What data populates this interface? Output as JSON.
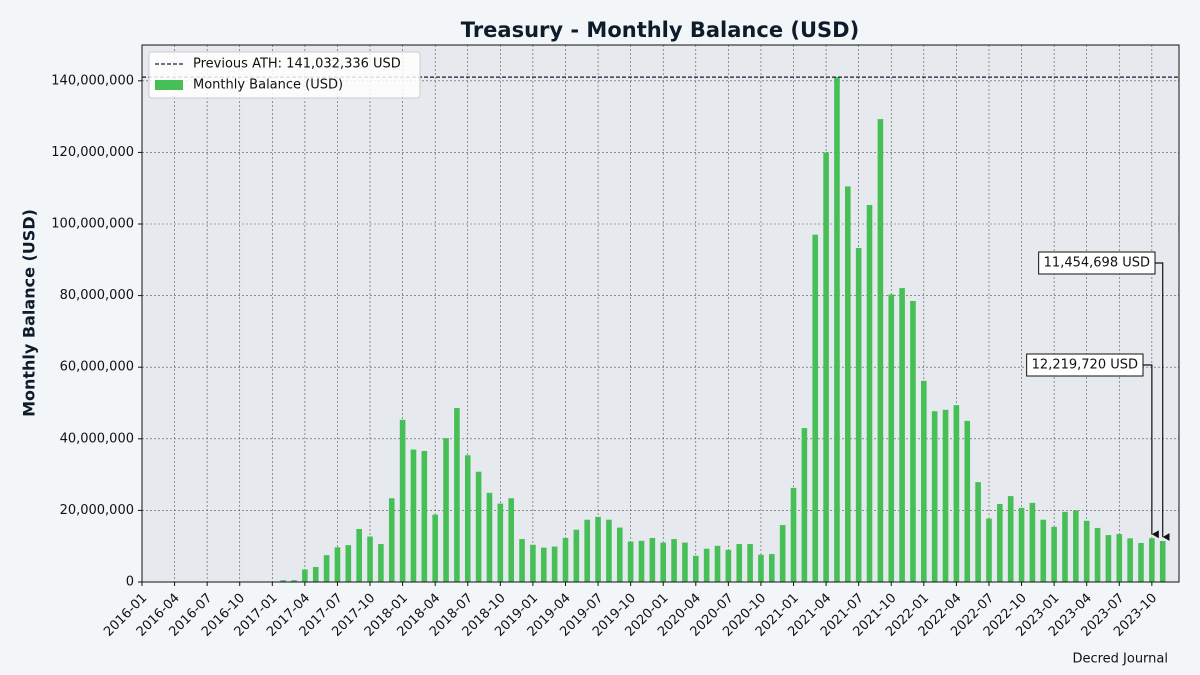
{
  "chart_data": {
    "type": "bar",
    "title": "Treasury - Monthly Balance (USD)",
    "y_label": "Monthly Balance (USD)",
    "source": "Decred Journal",
    "categories": [
      "2016-01",
      null,
      null,
      "2016-04",
      null,
      null,
      "2016-07",
      null,
      null,
      "2016-10",
      null,
      null,
      "2017-01",
      null,
      null,
      "2017-04",
      null,
      null,
      "2017-07",
      null,
      null,
      "2017-10",
      null,
      null,
      "2018-01",
      null,
      null,
      "2018-04",
      null,
      null,
      "2018-07",
      null,
      null,
      "2018-10",
      null,
      null,
      "2019-01",
      null,
      null,
      "2019-04",
      null,
      null,
      "2019-07",
      null,
      null,
      "2019-10",
      null,
      null,
      "2020-01",
      null,
      null,
      "2020-04",
      null,
      null,
      "2020-07",
      null,
      null,
      "2020-10",
      null,
      null,
      "2021-01",
      null,
      null,
      "2021-04",
      null,
      null,
      "2021-07",
      null,
      null,
      "2021-10",
      null,
      null,
      "2022-01",
      null,
      null,
      "2022-04",
      null,
      null,
      "2022-07",
      null,
      null,
      "2022-10",
      null,
      null,
      "2023-01",
      null,
      null,
      "2023-04",
      null,
      null,
      "2023-07",
      null,
      null,
      "2023-10",
      null
    ],
    "series": [
      {
        "name": "Monthly Balance (USD)",
        "color": "#47bf57",
        "values": [
          0,
          0,
          0,
          0,
          0,
          0,
          0,
          0,
          0,
          0,
          0,
          0,
          0,
          500000,
          500000,
          3500000,
          4200000,
          7500000,
          9700000,
          10300000,
          14800000,
          12700000,
          10600000,
          23400000,
          45300000,
          37000000,
          36600000,
          18800000,
          40200000,
          48600000,
          35400000,
          30800000,
          24900000,
          21900000,
          23400000,
          12000000,
          10400000,
          9600000,
          9900000,
          12300000,
          14600000,
          17400000,
          18200000,
          17400000,
          15200000,
          11300000,
          11500000,
          12300000,
          11000000,
          12000000,
          11000000,
          7300000,
          9300000,
          10100000,
          9000000,
          10600000,
          10600000,
          7600000,
          7800000,
          15900000,
          26300000,
          43000000,
          97000000,
          120000000,
          141032336,
          110500000,
          93300000,
          105300000,
          129300000,
          80300000,
          82100000,
          78500000,
          56200000,
          47700000,
          48100000,
          49400000,
          45000000,
          27900000,
          17700000,
          21800000,
          24000000,
          20700000,
          22100000,
          17400000,
          15400000,
          19600000,
          20000000,
          17100000,
          15100000,
          13100000,
          13400000,
          12200000,
          10900000,
          12219720,
          11454698
        ],
        "value_labels": [
          null,
          null,
          null,
          null,
          null,
          null,
          null,
          null,
          null,
          null,
          null,
          null,
          null,
          null,
          null,
          null,
          null,
          null,
          null,
          null,
          null,
          null,
          null,
          null,
          null,
          null,
          null,
          null,
          null,
          null,
          null,
          null,
          null,
          null,
          null,
          null,
          null,
          null,
          null,
          null,
          null,
          null,
          null,
          null,
          null,
          null,
          null,
          null,
          null,
          null,
          null,
          null,
          null,
          null,
          null,
          null,
          null,
          null,
          null,
          null,
          null,
          null,
          null,
          null,
          null,
          null,
          null,
          null,
          null,
          null,
          null,
          null,
          null,
          null,
          null,
          null,
          null,
          null,
          null,
          null,
          null,
          null,
          null,
          null,
          null,
          null,
          null,
          null,
          null,
          null,
          null,
          null,
          null,
          "12,219,720 USD",
          "11,454,698 USD"
        ]
      }
    ],
    "reference_line": {
      "name": "Previous ATH: 141,032,336 USD",
      "value": 141032336,
      "color": "#1a1a3a"
    },
    "ylim": [
      0,
      150000000
    ],
    "yticks": [
      0,
      {
        "value": 20000000,
        "label": "20,000,000"
      },
      {
        "value": 40000000,
        "label": "40,000,000"
      },
      {
        "value": 60000000,
        "label": "60,000,000"
      },
      {
        "value": 80000000,
        "label": "80,000,000"
      },
      {
        "value": 100000000,
        "label": "100,000,000"
      },
      {
        "value": 120000000,
        "label": "120,000,000"
      },
      {
        "value": 140000000,
        "label": "140,000,000"
      }
    ],
    "grid": true,
    "legend": "upper left"
  }
}
